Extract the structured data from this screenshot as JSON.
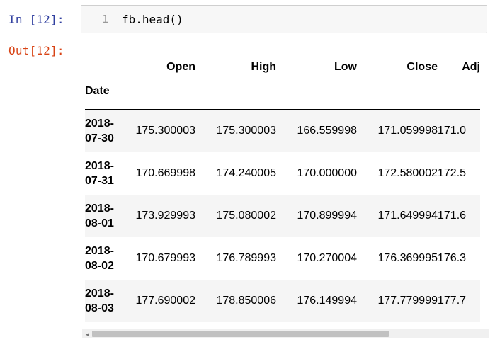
{
  "cell": {
    "in_prompt": "In [12]:",
    "line_number": "1",
    "code": "fb.head()",
    "out_prompt": "Out[12]:"
  },
  "table": {
    "columns": [
      "Open",
      "High",
      "Low",
      "Close",
      "Adj"
    ],
    "index_name": "Date",
    "rows": [
      {
        "date_year": "2018-",
        "date_md": "07-30",
        "open": "175.300003",
        "high": "175.300003",
        "low": "166.559998",
        "close": "171.059998",
        "adj": "171.0"
      },
      {
        "date_year": "2018-",
        "date_md": "07-31",
        "open": "170.669998",
        "high": "174.240005",
        "low": "170.000000",
        "close": "172.580002",
        "adj": "172.5"
      },
      {
        "date_year": "2018-",
        "date_md": "08-01",
        "open": "173.929993",
        "high": "175.080002",
        "low": "170.899994",
        "close": "171.649994",
        "adj": "171.6"
      },
      {
        "date_year": "2018-",
        "date_md": "08-02",
        "open": "170.679993",
        "high": "176.789993",
        "low": "170.270004",
        "close": "176.369995",
        "adj": "176.3"
      },
      {
        "date_year": "2018-",
        "date_md": "08-03",
        "open": "177.690002",
        "high": "178.850006",
        "low": "176.149994",
        "close": "177.779999",
        "adj": "177.7"
      }
    ]
  },
  "scrollbar": {
    "left_arrow": "◂",
    "thumb_fraction": 0.75
  }
}
